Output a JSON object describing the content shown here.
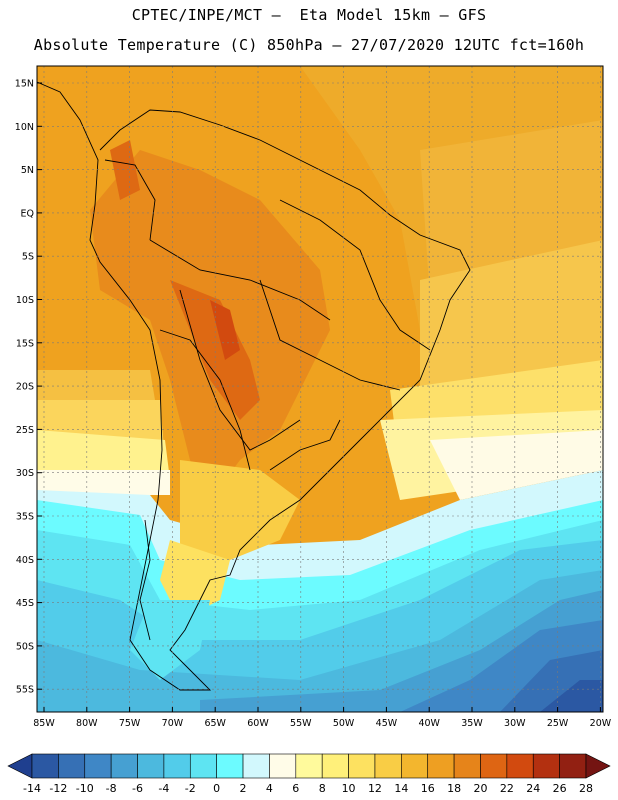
{
  "header": {
    "line1": "CPTEC/INPE/MCT –  Eta Model 15km – GFS",
    "line2": "Absolute Temperature (C) 850hPa – 27/07/2020 12UTC fct=160h"
  },
  "map": {
    "lat_labels": [
      "15N",
      "10N",
      "5N",
      "EQ",
      "5S",
      "10S",
      "15S",
      "20S",
      "25S",
      "30S",
      "35S",
      "40S",
      "45S",
      "50S",
      "55S"
    ],
    "lon_labels": [
      "85W",
      "80W",
      "75W",
      "70W",
      "65W",
      "60W",
      "55W",
      "50W",
      "45W",
      "40W",
      "35W",
      "30W",
      "25W",
      "20W"
    ]
  },
  "colorbar": {
    "labels": [
      "-14",
      "-12",
      "-10",
      "-8",
      "-6",
      "-4",
      "-2",
      "0",
      "2",
      "4",
      "6",
      "8",
      "10",
      "12",
      "14",
      "16",
      "18",
      "20",
      "22",
      "24",
      "26",
      "28"
    ],
    "colors": [
      "#1f3f8f",
      "#2b58a3",
      "#3670b5",
      "#3f87c6",
      "#46a0d2",
      "#4cb9de",
      "#52ccea",
      "#5ee4f2",
      "#6cfbff",
      "#d2f8fd",
      "#fffce8",
      "#fffa9c",
      "#fff07a",
      "#fde160",
      "#f9cd45",
      "#f3b62e",
      "#ee9f22",
      "#e6841a",
      "#de6513",
      "#d24a0f",
      "#b33010",
      "#922012",
      "#741412"
    ]
  }
}
